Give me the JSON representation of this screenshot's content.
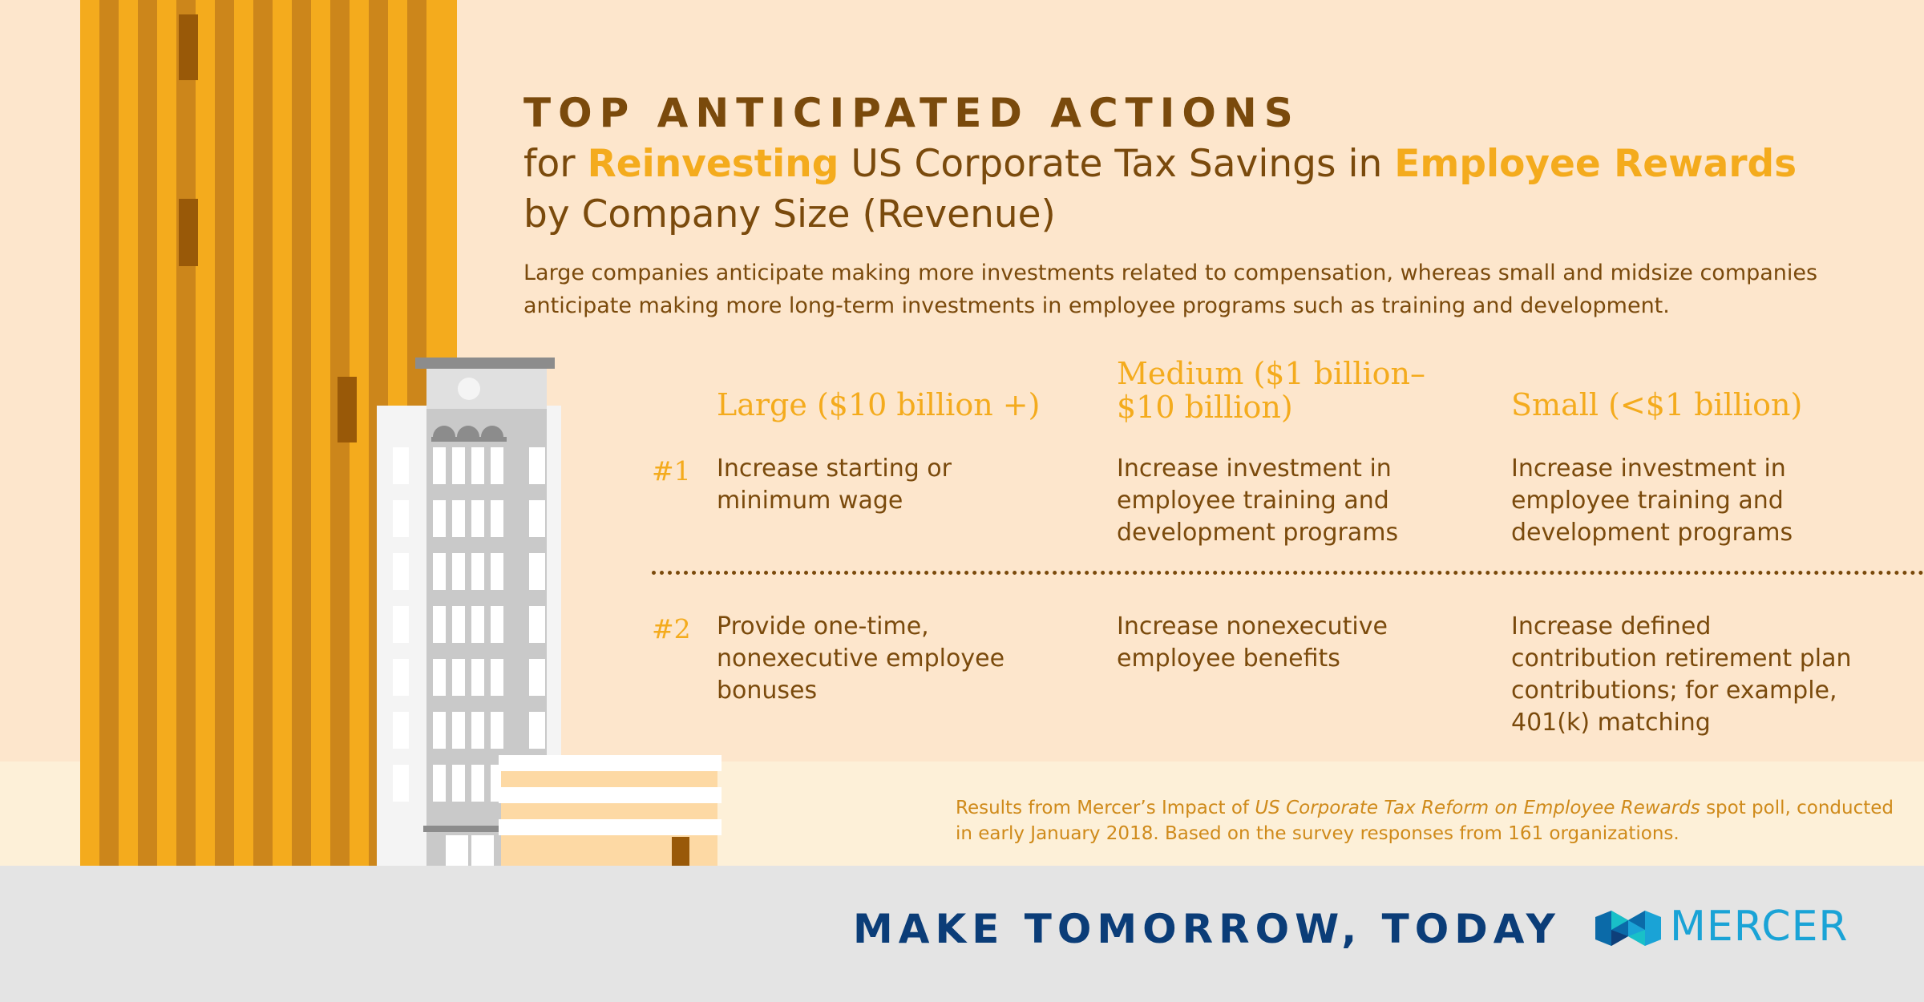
{
  "title": {
    "kicker": "TOP ANTICIPATED ACTIONS",
    "line2_pre": "for ",
    "line2_hl1": "Reinvesting",
    "line2_mid": " US Corporate Tax Savings in ",
    "line2_hl2": "Employee Rewards",
    "line3": "by Company Size (Revenue)"
  },
  "intro": "Large companies anticipate making more investments related to compensation, whereas small and midsize companies anticipate making more long-term investments in employee programs such as training and development.",
  "columns": [
    {
      "line1": "Large ($10 billion +)",
      "line2": ""
    },
    {
      "line1": "Medium ($1 billion–",
      "line2": "$10 billion)"
    },
    {
      "line1": "Small (<$1 billion)",
      "line2": ""
    }
  ],
  "rows": [
    {
      "rank": "#1",
      "cells": [
        "Increase starting or minimum wage",
        "Increase investment in employee training and development programs",
        "Increase investment in employee training and development programs"
      ]
    },
    {
      "rank": "#2",
      "cells": [
        "Provide one-time, nonexecutive employee bonuses",
        "Increase nonexecutive employee benefits",
        "Increase defined contribution retirement plan contributions; for example, 401(k) matching"
      ]
    }
  ],
  "source": {
    "pre": "Results from Mercer’s Impact of ",
    "italic": "US Corporate Tax Reform on Employee Rewards",
    "post": " spot poll, conducted in early January 2018. Based on the survey responses from 161 organizations."
  },
  "footer": {
    "tagline": "MAKE TOMORROW, TODAY",
    "brand": "MERCER",
    "logo_icon": "mercer-logo-icon"
  },
  "colors": {
    "background": "#fde6cc",
    "accent": "#f4ab1d",
    "text": "#7a4a0c",
    "footer_bg": "#e4e4e4",
    "tagline": "#0b3d78",
    "brand": "#1aa3d6"
  }
}
